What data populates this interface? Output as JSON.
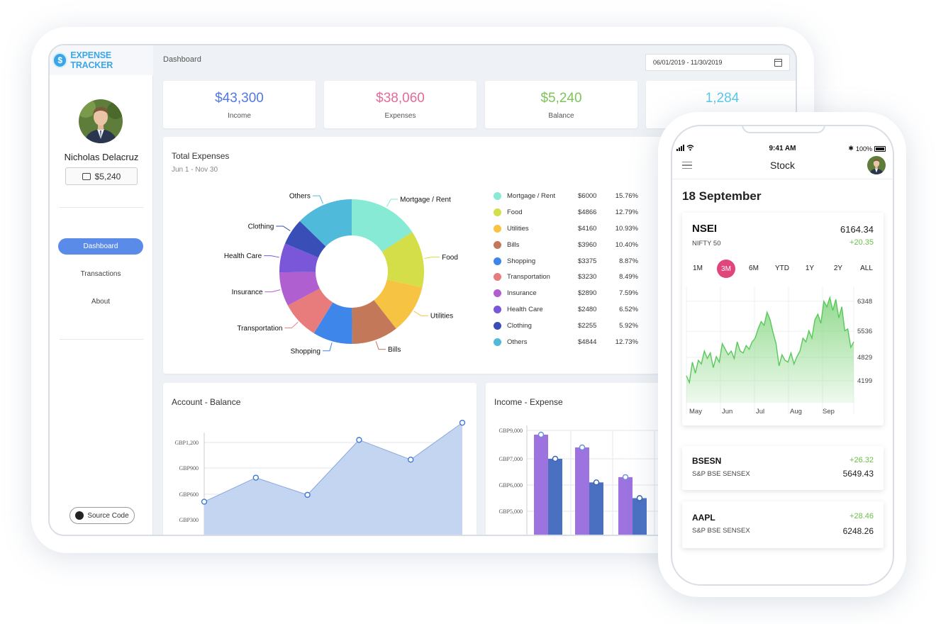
{
  "app": {
    "brand": "EXPENSE TRACKER",
    "brand_logo_glyph": "$",
    "user_name": "Nicholas Delacruz",
    "wallet_balance": "$5,240",
    "nav": [
      {
        "label": "Dashboard",
        "active": true
      },
      {
        "label": "Transactions",
        "active": false
      },
      {
        "label": "About",
        "active": false
      }
    ],
    "source_button": "Source Code",
    "breadcrumb": "Dashboard",
    "date_range": "06/01/2019 - 11/30/2019"
  },
  "kpis": [
    {
      "value": "$43,300",
      "label": "Income",
      "color": "#5277e3"
    },
    {
      "value": "$38,060",
      "label": "Expenses",
      "color": "#e36b9b"
    },
    {
      "value": "$5,240",
      "label": "Balance",
      "color": "#7cc35a"
    },
    {
      "value": "1,284",
      "label": "",
      "color": "#5bc8e8"
    }
  ],
  "total_expenses": {
    "title": "Total Expenses",
    "subtitle": "Jun 1 - Nov 30"
  },
  "account_balance": {
    "title": "Account - Balance"
  },
  "income_expense": {
    "title": "Income - Expense"
  },
  "phone": {
    "time": "9:41 AM",
    "battery": "100%",
    "title": "Stock",
    "date_heading": "18 September",
    "main_card": {
      "symbol": "NSEI",
      "name": "NIFTY 50",
      "price": "6164.34",
      "change": "+20.35",
      "periods": [
        "1M",
        "3M",
        "6M",
        "YTD",
        "1Y",
        "2Y",
        "ALL"
      ],
      "active_period": "3M"
    },
    "cards": [
      {
        "symbol": "BSESN",
        "name": "S&P BSE SENSEX",
        "change": "+26.32",
        "price": "5649.43"
      },
      {
        "symbol": "AAPL",
        "name": "S&P BSE SENSEX",
        "change": "+28.46",
        "price": "6248.26"
      }
    ]
  },
  "chart_data": [
    {
      "type": "pie",
      "title": "Total Expenses",
      "subtitle": "Jun 1 - Nov 30",
      "donut": true,
      "legend_position": "right",
      "slices": [
        {
          "label": "Mortgage / Rent",
          "value": 6000,
          "amount": "$6000",
          "percent": "15.76%",
          "color": "#86ead4"
        },
        {
          "label": "Food",
          "value": 4866,
          "amount": "$4866",
          "percent": "12.79%",
          "color": "#d3de48"
        },
        {
          "label": "Utilities",
          "value": 4160,
          "amount": "$4160",
          "percent": "10.93%",
          "color": "#f6c343"
        },
        {
          "label": "Bills",
          "value": 3960,
          "amount": "$3960",
          "percent": "10.40%",
          "color": "#c4785a"
        },
        {
          "label": "Shopping",
          "value": 3375,
          "amount": "$3375",
          "percent": "8.87%",
          "color": "#3f86ea"
        },
        {
          "label": "Transportation",
          "value": 3230,
          "amount": "$3230",
          "percent": "8.49%",
          "color": "#e87b7b"
        },
        {
          "label": "Insurance",
          "value": 2890,
          "amount": "$2890",
          "percent": "7.59%",
          "color": "#b05fd1"
        },
        {
          "label": "Health Care",
          "value": 2480,
          "amount": "$2480",
          "percent": "6.52%",
          "color": "#7a56d8"
        },
        {
          "label": "Clothing",
          "value": 2255,
          "amount": "$2255",
          "percent": "5.92%",
          "color": "#3a4eb8"
        },
        {
          "label": "Others",
          "value": 4844,
          "amount": "$4844",
          "percent": "12.73%",
          "color": "#4fbad9"
        }
      ]
    },
    {
      "type": "area",
      "title": "Account - Balance",
      "ytick_labels": [
        "GBP1,200",
        "GBP900",
        "GBP600",
        "GBP300"
      ],
      "ytick_values": [
        1200,
        900,
        600,
        300
      ],
      "ylim": [
        180,
        1280
      ],
      "values": [
        510,
        790,
        590,
        1230,
        1000,
        1430
      ],
      "color": "#c3d5f1",
      "line_color": "#8aa8dd",
      "marker_color": "#3d78d8",
      "grid": true
    },
    {
      "type": "bar",
      "title": "Income - Expense",
      "ytick_labels": [
        "GBP9,000",
        "GBP7,000",
        "GBP6,000",
        "GBP5,000"
      ],
      "ytick_values": [
        9000,
        7000,
        6000,
        5000
      ],
      "series": [
        {
          "values": [
            8700,
            7800,
            6300
          ],
          "color": "#9d73e0"
        },
        {
          "values": [
            7000,
            6100,
            5500
          ],
          "color": "#4a70c2"
        }
      ],
      "grid": true
    },
    {
      "type": "area",
      "title": "NSEI",
      "x_tick_labels": [
        "May",
        "Jun",
        "Jul",
        "Aug",
        "Sep"
      ],
      "ytick_labels": [
        "6348",
        "5536",
        "4829",
        "4199"
      ],
      "ytick_values": [
        6348,
        5536,
        4829,
        4199
      ],
      "ylim": [
        3600,
        6750
      ],
      "values": [
        4330,
        4150,
        4700,
        4400,
        4750,
        4650,
        5000,
        4800,
        4950,
        4550,
        4850,
        4700,
        5200,
        5050,
        4900,
        5000,
        4800,
        5250,
        5000,
        4950,
        5150,
        5050,
        5250,
        5350,
        5600,
        5800,
        5700,
        6050,
        5850,
        5500,
        5200,
        4600,
        4900,
        4750,
        4700,
        4950,
        4650,
        4850,
        5000,
        5350,
        5250,
        5550,
        5350,
        5850,
        6000,
        5750,
        6350,
        6200,
        6450,
        6100,
        6400,
        5900,
        6200,
        5550,
        5600,
        5100,
        5250
      ],
      "color": "#8ed98a",
      "line_color": "#58c85a",
      "grid": true
    }
  ]
}
